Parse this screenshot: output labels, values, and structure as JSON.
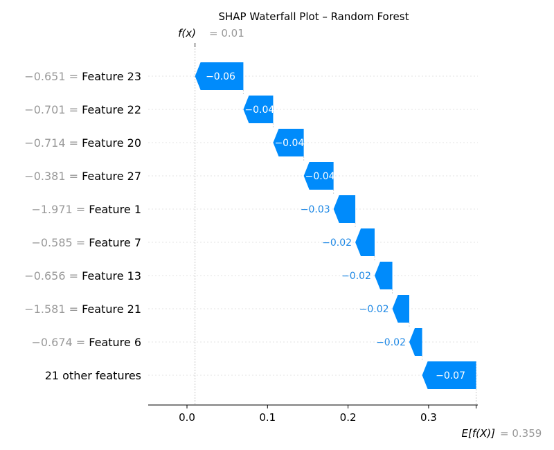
{
  "chart_data": {
    "type": "waterfall",
    "title": "SHAP Waterfall Plot – Random Forest",
    "fx": {
      "label": "f(x)",
      "value_text": "= 0.01",
      "value": 0.01
    },
    "base": {
      "label": "E[f(X)]",
      "value_text": "= 0.359",
      "value": 0.359
    },
    "xlim": [
      -0.048,
      0.36
    ],
    "xticks": [
      0.0,
      0.1,
      0.2,
      0.3
    ],
    "xtick_labels": [
      "0.0",
      "0.1",
      "0.2",
      "0.3"
    ],
    "bar_color": "#008bfb",
    "rows": [
      {
        "value_label": "−0.651 =",
        "feature": "Feature 23",
        "start": 0.07,
        "end": 0.01,
        "label": "−0.06"
      },
      {
        "value_label": "−0.701 =",
        "feature": "Feature 22",
        "start": 0.107,
        "end": 0.07,
        "label": "−0.04"
      },
      {
        "value_label": "−0.714 =",
        "feature": "Feature 20",
        "start": 0.145,
        "end": 0.107,
        "label": "−0.04"
      },
      {
        "value_label": "−0.381 =",
        "feature": "Feature 27",
        "start": 0.182,
        "end": 0.145,
        "label": "−0.04"
      },
      {
        "value_label": "−1.971 =",
        "feature": "Feature 1",
        "start": 0.209,
        "end": 0.182,
        "label": "−0.03"
      },
      {
        "value_label": "−0.585 =",
        "feature": "Feature 7",
        "start": 0.233,
        "end": 0.209,
        "label": "−0.02"
      },
      {
        "value_label": "−0.656 =",
        "feature": "Feature 13",
        "start": 0.255,
        "end": 0.233,
        "label": "−0.02"
      },
      {
        "value_label": "−1.581 =",
        "feature": "Feature 21",
        "start": 0.276,
        "end": 0.255,
        "label": "−0.02"
      },
      {
        "value_label": "−0.674 =",
        "feature": "Feature 6",
        "start": 0.292,
        "end": 0.276,
        "label": "−0.02"
      },
      {
        "value_label": "",
        "feature": "21 other features",
        "start": 0.359,
        "end": 0.292,
        "label": "−0.07"
      }
    ]
  }
}
